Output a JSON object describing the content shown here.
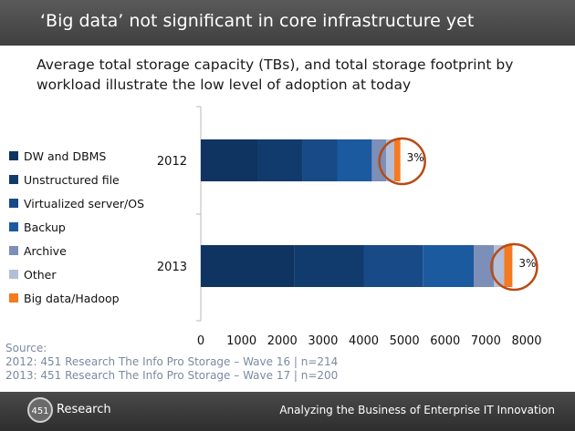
{
  "header": {
    "title": "‘Big data’ not significant in core infrastructure yet"
  },
  "subtitle": "Average total storage capacity (TBs), and total storage footprint by workload illustrate the low level of adoption at today",
  "chart_data": {
    "type": "bar",
    "orientation": "horizontal",
    "stacked": true,
    "categories": [
      "2012",
      "2013"
    ],
    "series": [
      {
        "name": "DW and DBMS",
        "color": "#0f3461",
        "values": [
          1400,
          2300
        ]
      },
      {
        "name": "Unstructured file",
        "color": "#123b6d",
        "values": [
          1100,
          1700
        ]
      },
      {
        "name": "Virtualized server/OS",
        "color": "#174a86",
        "values": [
          850,
          1450
        ]
      },
      {
        "name": "Backup",
        "color": "#1c5aa0",
        "values": [
          850,
          1250
        ]
      },
      {
        "name": "Archive",
        "color": "#7b8fb8",
        "values": [
          350,
          500
        ]
      },
      {
        "name": "Other",
        "color": "#b4bed6",
        "values": [
          200,
          250
        ]
      },
      {
        "name": "Big data/Hadoop",
        "color": "#f47a20",
        "values": [
          150,
          200
        ]
      }
    ],
    "xlim": [
      0,
      8000
    ],
    "xticks": [
      0,
      1000,
      2000,
      3000,
      4000,
      5000,
      6000,
      7000,
      8000
    ],
    "annotations": [
      "3%",
      "3%"
    ],
    "annotation_color": "#b84a16"
  },
  "source": {
    "label": "Source:",
    "line1": "2012: 451 Research The Info Pro Storage – Wave 16 | n=214",
    "line2": "2013: 451 Research The Info Pro Storage – Wave 17 | n=200"
  },
  "footer": {
    "logo_number": "451",
    "logo_text": "Research",
    "tagline": "Analyzing the Business of Enterprise IT Innovation"
  }
}
